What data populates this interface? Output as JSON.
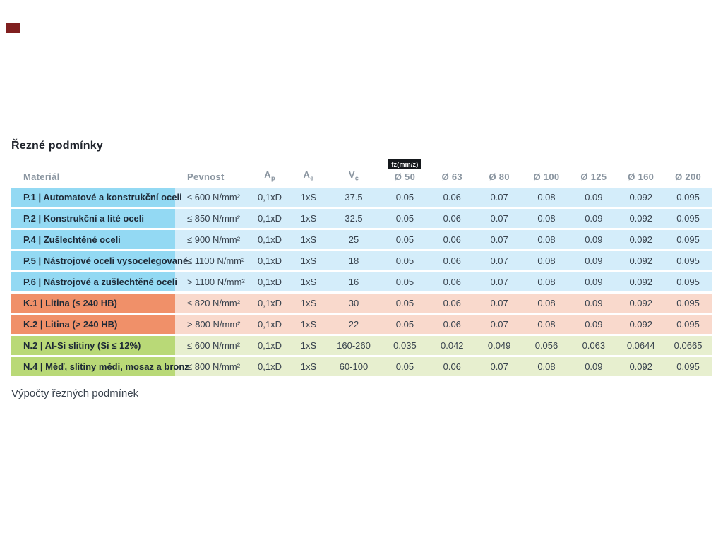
{
  "marker_color": "#801f1f",
  "heading": "Řezné podmínky",
  "footer": "Výpočty řezných podmínek",
  "table": {
    "fz_badge": "fz(mm/z)",
    "headers": {
      "material": "Materiál",
      "pevnost": "Pevnost",
      "ap": {
        "base": "A",
        "sub": "p"
      },
      "ae": {
        "base": "A",
        "sub": "e"
      },
      "vc": {
        "base": "V",
        "sub": "c"
      },
      "diameters": [
        "Ø 50",
        "Ø 63",
        "Ø 80",
        "Ø 100",
        "Ø 125",
        "Ø 160",
        "Ø 200"
      ]
    },
    "group_colors": {
      "P": {
        "label": "#93d9f3",
        "cells": "#d4edfa"
      },
      "K": {
        "label": "#f09069",
        "cells": "#f9d9cc"
      },
      "N": {
        "label": "#b9d977",
        "cells": "#e7efcf"
      }
    },
    "rows": [
      {
        "group": "P",
        "material": "P.1 | Automatové a konstrukční oceli",
        "pevnost": "≤ 600 N/mm²",
        "ap": "0,1xD",
        "ae": "1xS",
        "vc": "37.5",
        "fz": [
          "0.05",
          "0.06",
          "0.07",
          "0.08",
          "0.09",
          "0.092",
          "0.095"
        ]
      },
      {
        "group": "P",
        "material": "P.2 | Konstrukční a lité oceli",
        "pevnost": "≤ 850 N/mm²",
        "ap": "0,1xD",
        "ae": "1xS",
        "vc": "32.5",
        "fz": [
          "0.05",
          "0.06",
          "0.07",
          "0.08",
          "0.09",
          "0.092",
          "0.095"
        ]
      },
      {
        "group": "P",
        "material": "P.4 | Zušlechtěné oceli",
        "pevnost": "≤ 900 N/mm²",
        "ap": "0,1xD",
        "ae": "1xS",
        "vc": "25",
        "fz": [
          "0.05",
          "0.06",
          "0.07",
          "0.08",
          "0.09",
          "0.092",
          "0.095"
        ]
      },
      {
        "group": "P",
        "material": "P.5 | Nástrojové oceli vysocelegované",
        "pevnost": "≤ 1100 N/mm²",
        "ap": "0,1xD",
        "ae": "1xS",
        "vc": "18",
        "fz": [
          "0.05",
          "0.06",
          "0.07",
          "0.08",
          "0.09",
          "0.092",
          "0.095"
        ]
      },
      {
        "group": "P",
        "material": "P.6 | Nástrojové a zušlechtěné oceli",
        "pevnost": "> 1100 N/mm²",
        "ap": "0,1xD",
        "ae": "1xS",
        "vc": "16",
        "fz": [
          "0.05",
          "0.06",
          "0.07",
          "0.08",
          "0.09",
          "0.092",
          "0.095"
        ]
      },
      {
        "group": "K",
        "material": "K.1 | Litina (≤ 240 HB)",
        "pevnost": "≤ 820 N/mm²",
        "ap": "0,1xD",
        "ae": "1xS",
        "vc": "30",
        "fz": [
          "0.05",
          "0.06",
          "0.07",
          "0.08",
          "0.09",
          "0.092",
          "0.095"
        ]
      },
      {
        "group": "K",
        "material": "K.2 | Litina (> 240 HB)",
        "pevnost": "> 800 N/mm²",
        "ap": "0,1xD",
        "ae": "1xS",
        "vc": "22",
        "fz": [
          "0.05",
          "0.06",
          "0.07",
          "0.08",
          "0.09",
          "0.092",
          "0.095"
        ]
      },
      {
        "group": "N",
        "material": "N.2 | Al-Si slitiny (Si ≤ 12%)",
        "pevnost": "≤ 600 N/mm²",
        "ap": "0,1xD",
        "ae": "1xS",
        "vc": "160-260",
        "fz": [
          "0.035",
          "0.042",
          "0.049",
          "0.056",
          "0.063",
          "0.0644",
          "0.0665"
        ]
      },
      {
        "group": "N",
        "material": "N.4 | Měď, slitiny mědi, mosaz a bronz",
        "pevnost": "≤ 800 N/mm²",
        "ap": "0,1xD",
        "ae": "1xS",
        "vc": "60-100",
        "fz": [
          "0.05",
          "0.06",
          "0.07",
          "0.08",
          "0.09",
          "0.092",
          "0.095"
        ]
      }
    ]
  }
}
